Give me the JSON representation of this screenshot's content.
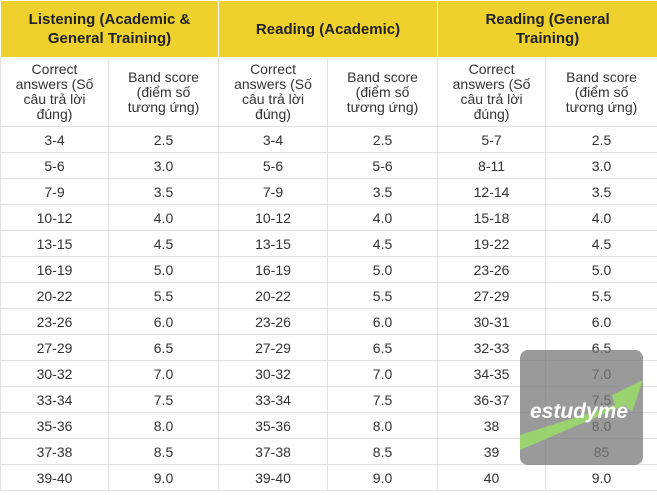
{
  "table": {
    "groups": [
      "Listening (Academic & General Training)",
      "Reading (Academic)",
      "Reading (General Training)"
    ],
    "subheaders": [
      "Correct answers (Số câu trả lời đúng)",
      "Band score (điểm số tương ứng)",
      "Correct answers (Số câu trả lời đúng)",
      "Band score (điểm số tương ứng)",
      "Correct answers (Số câu trả lời đúng)",
      "Band score (điểm số tương ứng)"
    ],
    "rows": [
      [
        "3-4",
        "2.5",
        "3-4",
        "2.5",
        "5-7",
        "2.5"
      ],
      [
        "5-6",
        "3.0",
        "5-6",
        "5-6",
        "8-11",
        "3.0"
      ],
      [
        "7-9",
        "3.5",
        "7-9",
        "3.5",
        "12-14",
        "3.5"
      ],
      [
        "10-12",
        "4.0",
        "10-12",
        "4.0",
        "15-18",
        "4.0"
      ],
      [
        "13-15",
        "4.5",
        "13-15",
        "4.5",
        "19-22",
        "4.5"
      ],
      [
        "16-19",
        "5.0",
        "16-19",
        "5.0",
        "23-26",
        "5.0"
      ],
      [
        "20-22",
        "5.5",
        "20-22",
        "5.5",
        "27-29",
        "5.5"
      ],
      [
        "23-26",
        "6.0",
        "23-26",
        "6.0",
        "30-31",
        "6.0"
      ],
      [
        "27-29",
        "6.5",
        "27-29",
        "6.5",
        "32-33",
        "6.5"
      ],
      [
        "30-32",
        "7.0",
        "30-32",
        "7.0",
        "34-35",
        "7.0"
      ],
      [
        "33-34",
        "7.5",
        "33-34",
        "7.5",
        "36-37",
        "7.5"
      ],
      [
        "35-36",
        "8.0",
        "35-36",
        "8.0",
        "38",
        "8.0"
      ],
      [
        "37-38",
        "8.5",
        "37-38",
        "8.5",
        "39",
        "85"
      ],
      [
        "39-40",
        "9.0",
        "39-40",
        "9.0",
        "40",
        "9.0"
      ]
    ]
  },
  "watermark": "estudyme"
}
